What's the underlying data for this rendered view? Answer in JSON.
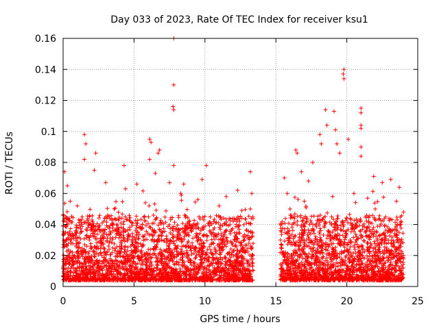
{
  "chart_data": {
    "type": "scatter",
    "title": "Day 033 of 2023, Rate Of TEC Index for receiver ksu1",
    "xlabel": "GPS time / hours",
    "ylabel": "ROTI / TECUs",
    "xlim": [
      0,
      25
    ],
    "ylim": [
      0,
      0.16
    ],
    "x_ticks": [
      "0",
      "5",
      "10",
      "15",
      "20",
      "25"
    ],
    "y_ticks": [
      "0",
      "0.02",
      "0.04",
      "0.06",
      "0.08",
      "0.1",
      "0.12",
      "0.14",
      "0.16"
    ],
    "grid": true,
    "marker": "+",
    "color": "#ff0000",
    "data_gap_hours": [
      13.4,
      15.3
    ],
    "series": [
      {
        "points": [
          [
            0.1,
            0.074
          ],
          [
            0.3,
            0.065
          ],
          [
            0.5,
            0.055
          ],
          [
            1.5,
            0.098
          ],
          [
            1.6,
            0.092
          ],
          [
            1.5,
            0.082
          ],
          [
            2.3,
            0.086
          ],
          [
            2.2,
            0.075
          ],
          [
            3.0,
            0.067
          ],
          [
            4.3,
            0.078
          ],
          [
            4.4,
            0.063
          ],
          [
            5.2,
            0.066
          ],
          [
            6.1,
            0.095
          ],
          [
            6.2,
            0.093
          ],
          [
            6.1,
            0.082
          ],
          [
            6.5,
            0.073
          ],
          [
            6.8,
            0.088
          ],
          [
            6.7,
            0.086
          ],
          [
            7.8,
            0.16
          ],
          [
            7.8,
            0.13
          ],
          [
            7.75,
            0.116
          ],
          [
            7.8,
            0.114
          ],
          [
            7.8,
            0.078
          ],
          [
            7.5,
            0.067
          ],
          [
            8.5,
            0.066
          ],
          [
            9.8,
            0.069
          ],
          [
            10.1,
            0.078
          ],
          [
            11.5,
            0.058
          ],
          [
            12.3,
            0.062
          ],
          [
            12.6,
            0.049
          ],
          [
            13.2,
            0.074
          ],
          [
            13.3,
            0.06
          ],
          [
            13.2,
            0.05
          ],
          [
            15.6,
            0.07
          ],
          [
            15.8,
            0.06
          ],
          [
            16.4,
            0.088
          ],
          [
            16.5,
            0.086
          ],
          [
            16.8,
            0.074
          ],
          [
            17.3,
            0.068
          ],
          [
            17.6,
            0.08
          ],
          [
            18.1,
            0.098
          ],
          [
            18.2,
            0.092
          ],
          [
            18.5,
            0.114
          ],
          [
            18.6,
            0.104
          ],
          [
            19.1,
            0.113
          ],
          [
            19.2,
            0.101
          ],
          [
            19.3,
            0.092
          ],
          [
            19.5,
            0.086
          ],
          [
            19.8,
            0.14
          ],
          [
            19.75,
            0.137
          ],
          [
            19.8,
            0.134
          ],
          [
            20.1,
            0.095
          ],
          [
            21.0,
            0.115
          ],
          [
            21.0,
            0.112
          ],
          [
            21.0,
            0.104
          ],
          [
            21.0,
            0.102
          ],
          [
            21.0,
            0.09
          ],
          [
            21.0,
            0.084
          ],
          [
            21.9,
            0.071
          ],
          [
            22.5,
            0.067
          ],
          [
            23.1,
            0.069
          ],
          [
            23.7,
            0.064
          ],
          [
            1.0,
            0.052
          ],
          [
            3.6,
            0.05
          ],
          [
            5.8,
            0.054
          ],
          [
            9.5,
            0.056
          ],
          [
            11.0,
            0.052
          ],
          [
            16.0,
            0.05
          ],
          [
            17.0,
            0.055
          ],
          [
            19.0,
            0.058
          ],
          [
            20.5,
            0.06
          ],
          [
            22.0,
            0.05
          ],
          [
            23.5,
            0.055
          ],
          [
            0.2,
            0.045
          ],
          [
            24.0,
            0.048
          ]
        ]
      }
    ]
  }
}
